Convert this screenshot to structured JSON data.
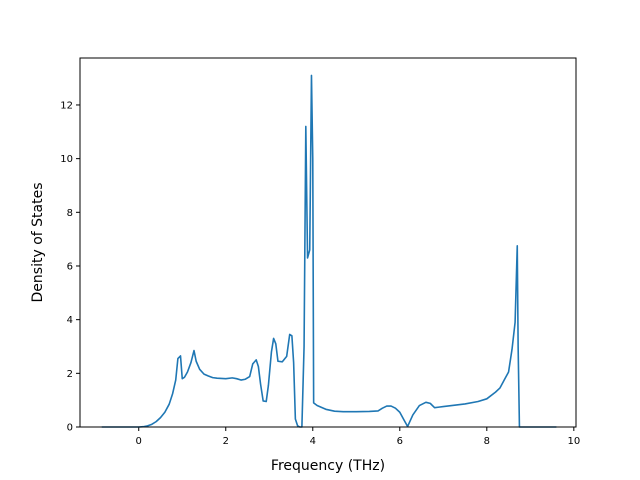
{
  "chart_data": {
    "type": "line",
    "title": "",
    "xlabel": "Frequency (THz)",
    "ylabel": "Density of States",
    "xlim": [
      -1.35,
      10.05
    ],
    "ylim": [
      0,
      13.75
    ],
    "x_ticks": [
      0,
      2,
      4,
      6,
      8,
      10
    ],
    "y_ticks": [
      0,
      2,
      4,
      6,
      8,
      10,
      12
    ],
    "grid": false,
    "legend": "none",
    "series": [
      {
        "color": "#1f77b4",
        "points": [
          [
            -0.85,
            0
          ],
          [
            -0.5,
            0
          ],
          [
            0,
            0
          ],
          [
            0.1,
            0.01
          ],
          [
            0.2,
            0.04
          ],
          [
            0.3,
            0.1
          ],
          [
            0.4,
            0.2
          ],
          [
            0.5,
            0.35
          ],
          [
            0.6,
            0.55
          ],
          [
            0.7,
            0.85
          ],
          [
            0.78,
            1.25
          ],
          [
            0.85,
            1.75
          ],
          [
            0.9,
            2.55
          ],
          [
            0.96,
            2.65
          ],
          [
            1.0,
            1.8
          ],
          [
            1.05,
            1.85
          ],
          [
            1.12,
            2.05
          ],
          [
            1.2,
            2.4
          ],
          [
            1.27,
            2.85
          ],
          [
            1.32,
            2.45
          ],
          [
            1.4,
            2.15
          ],
          [
            1.5,
            1.97
          ],
          [
            1.6,
            1.9
          ],
          [
            1.7,
            1.84
          ],
          [
            1.8,
            1.82
          ],
          [
            2.0,
            1.8
          ],
          [
            2.15,
            1.83
          ],
          [
            2.25,
            1.8
          ],
          [
            2.35,
            1.75
          ],
          [
            2.45,
            1.78
          ],
          [
            2.55,
            1.88
          ],
          [
            2.62,
            2.35
          ],
          [
            2.7,
            2.5
          ],
          [
            2.75,
            2.25
          ],
          [
            2.8,
            1.6
          ],
          [
            2.86,
            0.97
          ],
          [
            2.93,
            0.95
          ],
          [
            2.98,
            1.55
          ],
          [
            3.05,
            2.8
          ],
          [
            3.1,
            3.3
          ],
          [
            3.15,
            3.1
          ],
          [
            3.2,
            2.45
          ],
          [
            3.3,
            2.43
          ],
          [
            3.4,
            2.63
          ],
          [
            3.47,
            3.45
          ],
          [
            3.52,
            3.4
          ],
          [
            3.56,
            2.4
          ],
          [
            3.6,
            0.3
          ],
          [
            3.65,
            0.05
          ],
          [
            3.7,
            0
          ],
          [
            3.75,
            0
          ],
          [
            3.8,
            3.0
          ],
          [
            3.84,
            11.2
          ],
          [
            3.88,
            6.3
          ],
          [
            3.93,
            6.6
          ],
          [
            3.97,
            13.1
          ],
          [
            4.0,
            10.0
          ],
          [
            4.02,
            0.9
          ],
          [
            4.1,
            0.8
          ],
          [
            4.3,
            0.66
          ],
          [
            4.5,
            0.59
          ],
          [
            4.7,
            0.57
          ],
          [
            5.0,
            0.57
          ],
          [
            5.3,
            0.58
          ],
          [
            5.5,
            0.6
          ],
          [
            5.6,
            0.7
          ],
          [
            5.7,
            0.78
          ],
          [
            5.8,
            0.78
          ],
          [
            5.9,
            0.7
          ],
          [
            6.0,
            0.55
          ],
          [
            6.1,
            0.25
          ],
          [
            6.18,
            0.02
          ],
          [
            6.3,
            0.45
          ],
          [
            6.45,
            0.8
          ],
          [
            6.6,
            0.92
          ],
          [
            6.7,
            0.88
          ],
          [
            6.8,
            0.72
          ],
          [
            6.9,
            0.74
          ],
          [
            7.0,
            0.76
          ],
          [
            7.5,
            0.86
          ],
          [
            7.8,
            0.95
          ],
          [
            8.0,
            1.05
          ],
          [
            8.2,
            1.3
          ],
          [
            8.3,
            1.45
          ],
          [
            8.4,
            1.75
          ],
          [
            8.5,
            2.05
          ],
          [
            8.58,
            2.9
          ],
          [
            8.65,
            3.9
          ],
          [
            8.7,
            6.75
          ],
          [
            8.72,
            3.0
          ],
          [
            8.75,
            0
          ],
          [
            9.0,
            0
          ],
          [
            9.6,
            0
          ]
        ]
      }
    ]
  }
}
